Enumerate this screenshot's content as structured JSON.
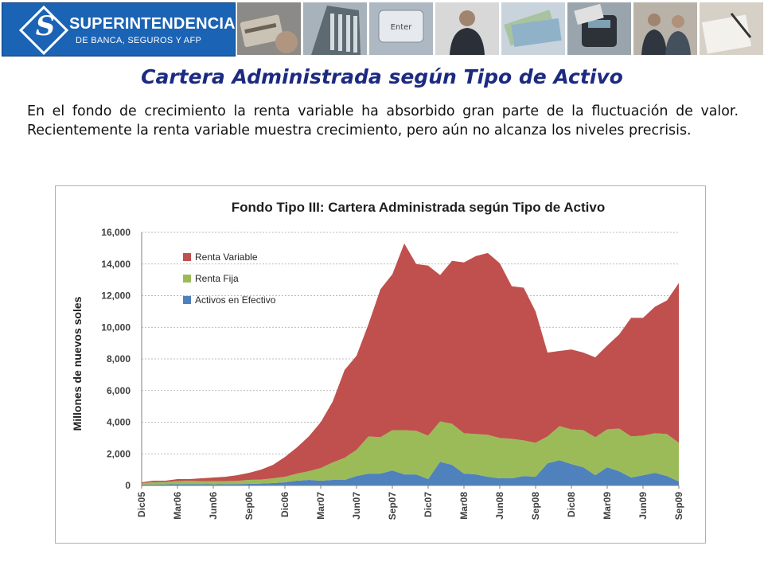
{
  "header": {
    "logo_name": "SUPERINTENDENCIA",
    "logo_sub": "DE BANCA, SEGUROS Y AFP",
    "logo_letter": "S"
  },
  "slide": {
    "title": "Cartera Administrada según Tipo de Activo",
    "body": "En el fondo de crecimiento la renta variable ha absorbido gran parte de la fluctuación de valor. Recientemente la renta variable muestra crecimiento, pero aún no alcanza los niveles precrisis."
  },
  "colors": {
    "brand_blue": "#1b63b4",
    "title_navy": "#1c2a80",
    "renta_variable": "#c0504d",
    "renta_fija": "#9bbb59",
    "activos_efectivo": "#4f81bd"
  },
  "chart_data": {
    "type": "area",
    "stacked": true,
    "title": "Fondo Tipo III: Cartera Administrada según Tipo de Activo",
    "xlabel": "",
    "ylabel": "Millones de nuevos soles",
    "ylim": [
      0,
      16000
    ],
    "yticks": [
      "0",
      "2,000",
      "4,000",
      "6,000",
      "8,000",
      "10,000",
      "12,000",
      "14,000",
      "16,000"
    ],
    "grid": true,
    "legend": "top-left",
    "categories": [
      "Dic05",
      "Ene06",
      "Feb06",
      "Mar06",
      "Abr06",
      "May06",
      "Jun06",
      "Jul06",
      "Ago06",
      "Sep06",
      "Oct06",
      "Nov06",
      "Dic06",
      "Ene07",
      "Feb07",
      "Mar07",
      "Abr07",
      "May07",
      "Jun07",
      "Jul07",
      "Ago07",
      "Sep07",
      "Oct07",
      "Nov07",
      "Dic07",
      "Ene08",
      "Feb08",
      "Mar08",
      "Abr08",
      "May08",
      "Jun08",
      "Jul08",
      "Ago08",
      "Sep08",
      "Oct08",
      "Nov08",
      "Dic08",
      "Ene09",
      "Feb09",
      "Mar09",
      "Abr09",
      "May09",
      "Jun09",
      "Jul09",
      "Ago09",
      "Sep09"
    ],
    "x_tick_labels": [
      "Dic05",
      "Mar06",
      "Jun06",
      "Sep06",
      "Dic06",
      "Mar07",
      "Jun07",
      "Sep07",
      "Dic07",
      "Mar08",
      "Jun08",
      "Sep08",
      "Dic08",
      "Mar09",
      "Jun09",
      "Sep09"
    ],
    "series": [
      {
        "name": "Activos en Efectivo",
        "values": [
          50,
          60,
          70,
          80,
          90,
          80,
          70,
          80,
          90,
          100,
          120,
          150,
          200,
          300,
          350,
          300,
          350,
          350,
          600,
          750,
          750,
          950,
          700,
          700,
          400,
          1500,
          1300,
          750,
          700,
          550,
          450,
          450,
          600,
          550,
          1400,
          1600,
          1350,
          1150,
          650,
          1150,
          900,
          500,
          650,
          800,
          600,
          250
        ]
      },
      {
        "name": "Renta Fija",
        "values": [
          100,
          150,
          150,
          200,
          200,
          200,
          200,
          200,
          200,
          250,
          250,
          300,
          350,
          450,
          550,
          800,
          1100,
          1400,
          1650,
          2350,
          2300,
          2550,
          2800,
          2750,
          2750,
          2550,
          2600,
          2550,
          2550,
          2650,
          2550,
          2500,
          2250,
          2150,
          1700,
          2150,
          2200,
          2350,
          2400,
          2400,
          2700,
          2600,
          2500,
          2500,
          2650,
          2450
        ]
      },
      {
        "name": "Renta Variable",
        "values": [
          50,
          90,
          80,
          120,
          110,
          170,
          230,
          270,
          360,
          450,
          630,
          850,
          1250,
          1650,
          2200,
          2900,
          3850,
          5550,
          5950,
          7100,
          9350,
          9850,
          11800,
          10550,
          10750,
          9250,
          10300,
          10800,
          11250,
          11500,
          11050,
          9650,
          9650,
          8300,
          5300,
          4750,
          5050,
          4900,
          5050,
          5300,
          5950,
          7500,
          7450,
          8000,
          8450,
          10100
        ]
      }
    ]
  }
}
